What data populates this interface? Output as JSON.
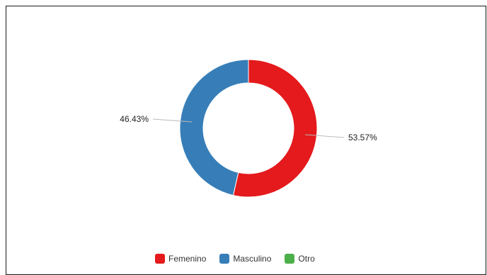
{
  "chart_data": {
    "type": "pie",
    "donut": true,
    "categories": [
      "Femenino",
      "Masculino",
      "Otro"
    ],
    "values": [
      53.57,
      46.43,
      0
    ],
    "labels": [
      "53.57%",
      "46.43%",
      ""
    ],
    "colors": [
      "#e41a1c",
      "#377eb8",
      "#4daf4a"
    ],
    "legend_position": "bottom-center",
    "title": ""
  }
}
